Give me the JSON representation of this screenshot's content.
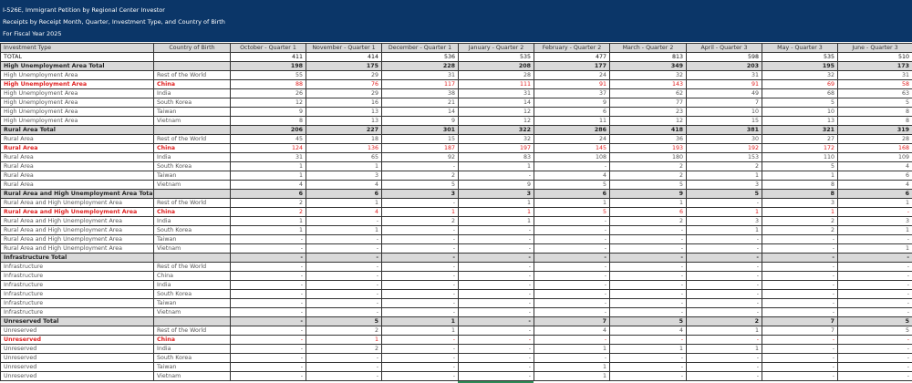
{
  "banner": {
    "title": "I-526E, Immigrant Petition by Regional Center Investor",
    "subtitle": "Receipts by Receipt Month, Quarter, Investment Type, and Country of Birth",
    "fiscal_year": "For Fiscal Year 2025"
  },
  "colors": {
    "banner": "#0b3668",
    "highlight": "#e02020",
    "group_bg": "#d9d9d9"
  },
  "table": {
    "headers": [
      "Investment Type",
      "Country of Birth",
      "October - Quarter 1",
      "November - Quarter 1",
      "December - Quarter 1",
      "January - Quarter 2",
      "February - Quarter 2",
      "March - Quarter 2",
      "April - Quarter 3",
      "May - Quarter 3",
      "June - Quarter 3"
    ],
    "rows": [
      {
        "kind": "total",
        "type": "TOTAL",
        "country": "",
        "values": [
          "411",
          "414",
          "536",
          "535",
          "477",
          "813",
          "598",
          "535",
          "510"
        ]
      },
      {
        "kind": "group",
        "type": "High Unemployment Area Total",
        "country": "",
        "values": [
          "198",
          "175",
          "228",
          "208",
          "177",
          "349",
          "203",
          "195",
          "173"
        ]
      },
      {
        "kind": "normal",
        "type": "High Unemployment Area",
        "country": "Rest of the World",
        "values": [
          "55",
          "29",
          "31",
          "28",
          "24",
          "32",
          "31",
          "32",
          "31"
        ]
      },
      {
        "kind": "china",
        "type": "High Unemployment Area",
        "country": "China",
        "values": [
          "88",
          "76",
          "117",
          "111",
          "91",
          "143",
          "91",
          "69",
          "58"
        ]
      },
      {
        "kind": "normal",
        "type": "High Unemployment Area",
        "country": "India",
        "values": [
          "26",
          "29",
          "38",
          "31",
          "37",
          "62",
          "49",
          "68",
          "63"
        ]
      },
      {
        "kind": "normal",
        "type": "High Unemployment Area",
        "country": "South Korea",
        "values": [
          "12",
          "16",
          "21",
          "14",
          "9",
          "77",
          "7",
          "5",
          "5"
        ]
      },
      {
        "kind": "normal",
        "type": "High Unemployment Area",
        "country": "Taiwan",
        "values": [
          "9",
          "13",
          "14",
          "12",
          "6",
          "23",
          "10",
          "10",
          "8"
        ]
      },
      {
        "kind": "normal",
        "type": "High Unemployment Area",
        "country": "Vietnam",
        "values": [
          "8",
          "13",
          "9",
          "12",
          "11",
          "12",
          "15",
          "13",
          "8"
        ]
      },
      {
        "kind": "group",
        "type": "Rural Area Total",
        "country": "",
        "values": [
          "206",
          "227",
          "301",
          "322",
          "286",
          "418",
          "381",
          "321",
          "319"
        ]
      },
      {
        "kind": "normal",
        "type": "Rural Area",
        "country": "Rest of the World",
        "values": [
          "45",
          "18",
          "15",
          "32",
          "24",
          "36",
          "30",
          "27",
          "28"
        ]
      },
      {
        "kind": "china",
        "type": "Rural Area",
        "country": "China",
        "values": [
          "124",
          "136",
          "187",
          "197",
          "145",
          "193",
          "192",
          "172",
          "168"
        ]
      },
      {
        "kind": "normal",
        "type": "Rural Area",
        "country": "India",
        "values": [
          "31",
          "65",
          "92",
          "83",
          "108",
          "180",
          "153",
          "110",
          "109"
        ]
      },
      {
        "kind": "normal",
        "type": "Rural Area",
        "country": "South Korea",
        "values": [
          "1",
          "1",
          "-",
          "1",
          "-",
          "2",
          "2",
          "5",
          "4"
        ]
      },
      {
        "kind": "normal",
        "type": "Rural Area",
        "country": "Taiwan",
        "values": [
          "1",
          "3",
          "2",
          "-",
          "4",
          "2",
          "1",
          "1",
          "6"
        ]
      },
      {
        "kind": "normal",
        "type": "Rural Area",
        "country": "Vietnam",
        "values": [
          "4",
          "4",
          "5",
          "9",
          "5",
          "5",
          "3",
          "8",
          "4"
        ]
      },
      {
        "kind": "group",
        "type": "Rural Area and High Unemployment Area Total",
        "country": "",
        "values": [
          "6",
          "6",
          "3",
          "3",
          "6",
          "9",
          "5",
          "8",
          "6"
        ]
      },
      {
        "kind": "normal",
        "type": "Rural Area and High Unemployment Area",
        "country": "Rest of the World",
        "values": [
          "2",
          "1",
          "-",
          "1",
          "1",
          "1",
          "-",
          "3",
          "1"
        ]
      },
      {
        "kind": "china",
        "type": "Rural Area and High Unemployment Area",
        "country": "China",
        "values": [
          "2",
          "4",
          "1",
          "1",
          "5",
          "6",
          "1",
          "1",
          "-"
        ]
      },
      {
        "kind": "normal",
        "type": "Rural Area and High Unemployment Area",
        "country": "India",
        "values": [
          "1",
          "-",
          "2",
          "1",
          "-",
          "2",
          "3",
          "2",
          "3"
        ]
      },
      {
        "kind": "normal",
        "type": "Rural Area and High Unemployment Area",
        "country": "South Korea",
        "values": [
          "1",
          "1",
          "-",
          "-",
          "-",
          "-",
          "1",
          "2",
          "1"
        ]
      },
      {
        "kind": "normal",
        "type": "Rural Area and High Unemployment Area",
        "country": "Taiwan",
        "values": [
          "-",
          "-",
          "-",
          "-",
          "-",
          "-",
          "-",
          "-",
          "-"
        ]
      },
      {
        "kind": "normal",
        "type": "Rural Area and High Unemployment Area",
        "country": "Vietnam",
        "values": [
          "-",
          "-",
          "-",
          "-",
          "-",
          "-",
          "-",
          "-",
          "1"
        ]
      },
      {
        "kind": "group",
        "type": "Infrastructure Total",
        "country": "",
        "values": [
          "-",
          "-",
          "-",
          "-",
          "-",
          "-",
          "-",
          "-",
          "-"
        ]
      },
      {
        "kind": "normal",
        "type": "Infrastructure",
        "country": "Rest of the World",
        "values": [
          "-",
          "-",
          "-",
          "-",
          "-",
          "-",
          "-",
          "-",
          "-"
        ]
      },
      {
        "kind": "normal",
        "type": "Infrastructure",
        "country": "China",
        "values": [
          "-",
          "-",
          "-",
          "-",
          "-",
          "-",
          "-",
          "-",
          "-"
        ]
      },
      {
        "kind": "normal",
        "type": "Infrastructure",
        "country": "India",
        "values": [
          "-",
          "-",
          "-",
          "-",
          "-",
          "-",
          "-",
          "-",
          "-"
        ]
      },
      {
        "kind": "normal",
        "type": "Infrastructure",
        "country": "South Korea",
        "values": [
          "-",
          "-",
          "-",
          "-",
          "-",
          "-",
          "-",
          "-",
          "-"
        ]
      },
      {
        "kind": "normal",
        "type": "Infrastructure",
        "country": "Taiwan",
        "values": [
          "-",
          "-",
          "-",
          "-",
          "-",
          "-",
          "-",
          "-",
          "-"
        ]
      },
      {
        "kind": "normal",
        "type": "Infrastructure",
        "country": "Vietnam",
        "values": [
          "-",
          "-",
          "-",
          "-",
          "-",
          "-",
          "-",
          "-",
          "-"
        ]
      },
      {
        "kind": "group",
        "type": "Unreserved Total",
        "country": "",
        "values": [
          "-",
          "5",
          "1",
          "-",
          "7",
          "5",
          "2",
          "7",
          "5"
        ]
      },
      {
        "kind": "normal",
        "type": "Unreserved",
        "country": "Rest of the World",
        "values": [
          "-",
          "2",
          "1",
          "-",
          "4",
          "4",
          "1",
          "7",
          "5"
        ]
      },
      {
        "kind": "china",
        "type": "Unreserved",
        "country": "China",
        "values": [
          "-",
          "1",
          "-",
          "-",
          "-",
          "-",
          "-",
          "-",
          "-"
        ]
      },
      {
        "kind": "normal",
        "type": "Unreserved",
        "country": "India",
        "values": [
          "-",
          "2",
          "-",
          "-",
          "1",
          "1",
          "1",
          "-",
          "-"
        ]
      },
      {
        "kind": "normal",
        "type": "Unreserved",
        "country": "South Korea",
        "values": [
          "-",
          "-",
          "-",
          "-",
          "-",
          "-",
          "-",
          "-",
          "-"
        ]
      },
      {
        "kind": "normal",
        "type": "Unreserved",
        "country": "Taiwan",
        "values": [
          "-",
          "-",
          "-",
          "-",
          "1",
          "-",
          "-",
          "-",
          "-"
        ]
      },
      {
        "kind": "normal",
        "type": "Unreserved",
        "country": "Vietnam",
        "values": [
          "-",
          "-",
          "-",
          "-",
          "1",
          "-",
          "-",
          "-",
          "-"
        ]
      }
    ]
  }
}
